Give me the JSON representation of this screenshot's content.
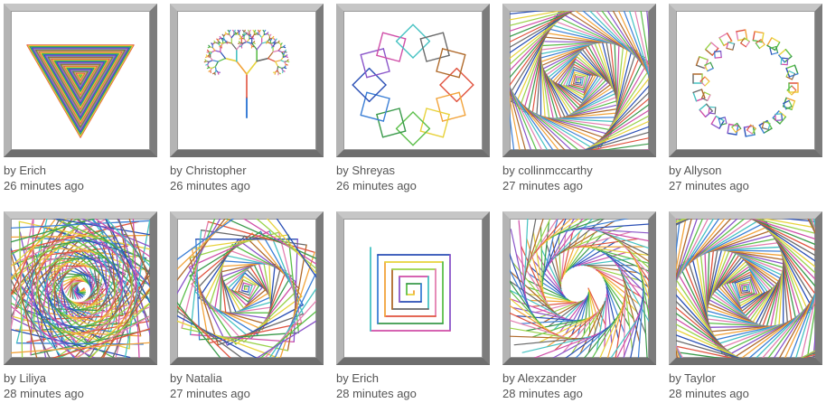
{
  "gallery": {
    "items": [
      {
        "author": "by Erich",
        "time": "26 minutes ago",
        "art": "nested-triangles"
      },
      {
        "author": "by Christopher",
        "time": "26 minutes ago",
        "art": "fractal-tree"
      },
      {
        "author": "by Shreyas",
        "time": "26 minutes ago",
        "art": "rotated-squares-ring"
      },
      {
        "author": "by collinmccarthy",
        "time": "27 minutes ago",
        "art": "square-spiral-dense"
      },
      {
        "author": "by Allyson",
        "time": "27 minutes ago",
        "art": "polygon-ring"
      },
      {
        "author": "by Liliya",
        "time": "28 minutes ago",
        "art": "circle-vortex"
      },
      {
        "author": "by Natalia",
        "time": "27 minutes ago",
        "art": "square-spiral-open"
      },
      {
        "author": "by Erich",
        "time": "28 minutes ago",
        "art": "square-maze-spiral"
      },
      {
        "author": "by Alexzander",
        "time": "28 minutes ago",
        "art": "triskelion-spiral"
      },
      {
        "author": "by Taylor",
        "time": "28 minutes ago",
        "art": "square-vortex"
      }
    ]
  },
  "palette": [
    "#e0533f",
    "#f2a33a",
    "#e8d23b",
    "#5cbf4a",
    "#3a9a4b",
    "#3b7fd6",
    "#2a4fb5",
    "#8a55c9",
    "#d04fa8",
    "#46c2c2",
    "#6a6a6a",
    "#b06a2b",
    "#9ad24a",
    "#e37fb0"
  ]
}
